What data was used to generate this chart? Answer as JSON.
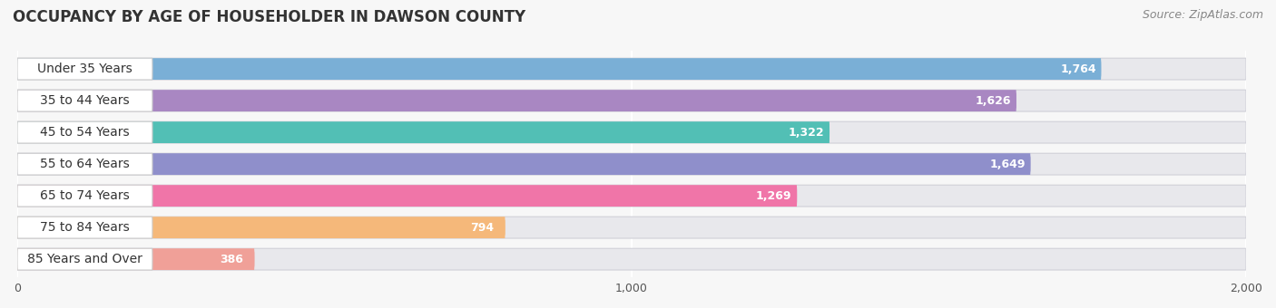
{
  "title": "OCCUPANCY BY AGE OF HOUSEHOLDER IN DAWSON COUNTY",
  "source": "Source: ZipAtlas.com",
  "categories": [
    "Under 35 Years",
    "35 to 44 Years",
    "45 to 54 Years",
    "55 to 64 Years",
    "65 to 74 Years",
    "75 to 84 Years",
    "85 Years and Over"
  ],
  "values": [
    1764,
    1626,
    1322,
    1649,
    1269,
    794,
    386
  ],
  "bar_colors": [
    "#7aafd6",
    "#a987c2",
    "#52bfb5",
    "#8f8fcb",
    "#f075a8",
    "#f5b87a",
    "#f0a098"
  ],
  "bar_bg_color": "#e8e8ec",
  "xlim": [
    0,
    2000
  ],
  "xticks": [
    0,
    1000,
    2000
  ],
  "xticklabels": [
    "0",
    "1,000",
    "2,000"
  ],
  "background_color": "#f7f7f7",
  "title_fontsize": 12,
  "source_fontsize": 9,
  "label_fontsize": 10,
  "value_fontsize": 9
}
